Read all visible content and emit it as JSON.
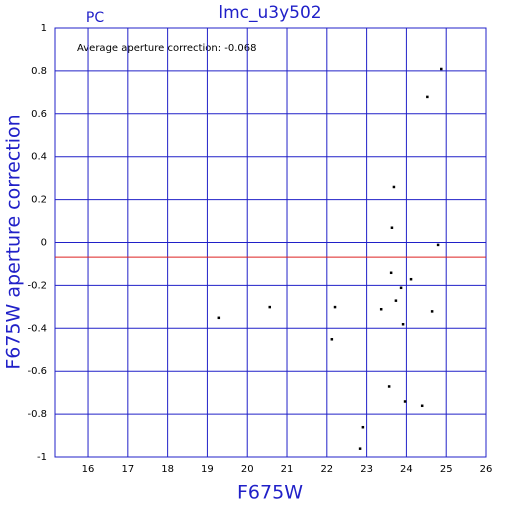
{
  "chart_data": {
    "type": "scatter",
    "title": "lmc_u3y502",
    "subtitle": "PC",
    "annotation": "Average aperture correction: -0.068",
    "xlabel": "F675W",
    "ylabel": "F675W aperture correction",
    "xlim": [
      15.17,
      26
    ],
    "ylim": [
      -1,
      1
    ],
    "xticks": [
      16,
      17,
      18,
      19,
      20,
      21,
      22,
      23,
      24,
      25,
      26
    ],
    "yticks": [
      -1,
      -0.8,
      -0.6,
      -0.4,
      -0.2,
      0,
      0.2,
      0.4,
      0.6,
      0.8,
      1
    ],
    "grid": true,
    "hline": -0.068,
    "hline_color": "#dd2222",
    "axis_color": "#2020c8",
    "color": "#000000",
    "x": [
      24.87,
      24.52,
      23.68,
      23.63,
      24.79,
      23.61,
      24.11,
      23.86,
      23.73,
      23.36,
      24.64,
      23.91,
      22.2,
      20.56,
      19.28,
      22.12,
      23.56,
      23.96,
      24.39,
      22.9,
      22.83
    ],
    "values": [
      0.81,
      0.68,
      0.26,
      0.07,
      -0.01,
      -0.14,
      -0.17,
      -0.21,
      -0.27,
      -0.31,
      -0.32,
      -0.38,
      -0.3,
      -0.3,
      -0.35,
      -0.45,
      -0.67,
      -0.74,
      -0.76,
      -0.86,
      -0.96
    ]
  }
}
